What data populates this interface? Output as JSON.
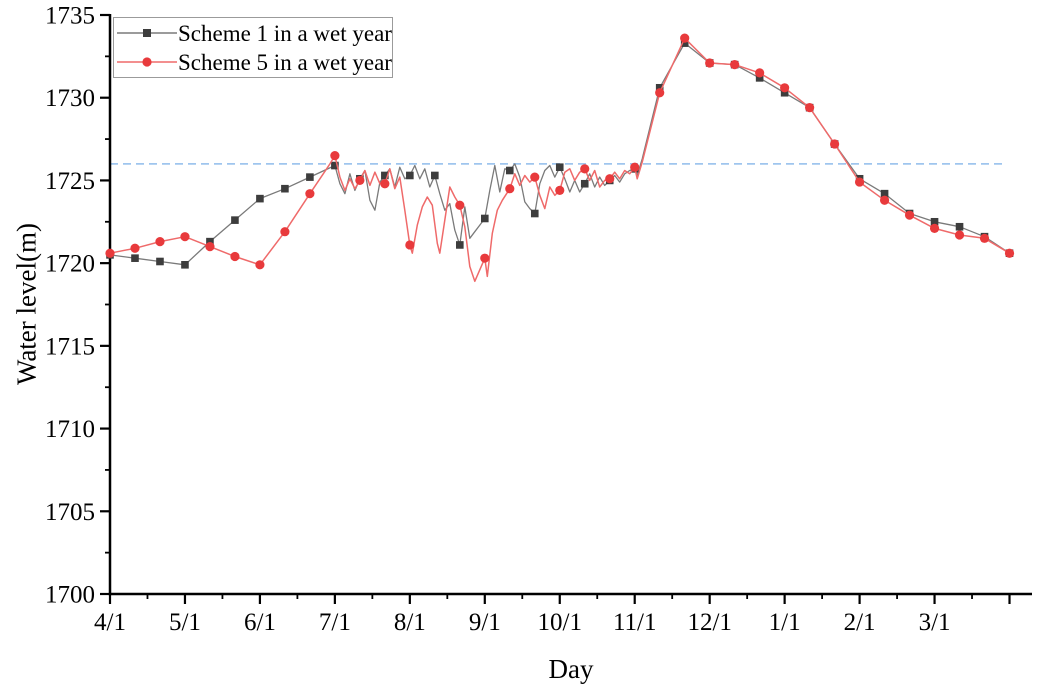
{
  "chart_data": {
    "type": "line",
    "title": "",
    "xlabel": "Day",
    "ylabel": "Water level(m)",
    "x_unit": "days since April 1 (monthly ticks)",
    "xlim": [
      0,
      369
    ],
    "ylim": [
      1700,
      1735
    ],
    "grid": "off",
    "y_major_ticks": [
      1700,
      1705,
      1710,
      1715,
      1720,
      1725,
      1730,
      1735
    ],
    "y_minor_step": 2.5,
    "x_ticks": [
      {
        "day": 0,
        "label": "4/1"
      },
      {
        "day": 30,
        "label": "5/1"
      },
      {
        "day": 60,
        "label": "6/1"
      },
      {
        "day": 90,
        "label": "7/1"
      },
      {
        "day": 120,
        "label": "8/1"
      },
      {
        "day": 150,
        "label": "9/1"
      },
      {
        "day": 180,
        "label": "10/1"
      },
      {
        "day": 210,
        "label": "11/1"
      },
      {
        "day": 240,
        "label": "12/1"
      },
      {
        "day": 270,
        "label": "1/1"
      },
      {
        "day": 300,
        "label": "2/1"
      },
      {
        "day": 330,
        "label": "3/1"
      },
      {
        "day": 360,
        "label": ""
      }
    ],
    "x_minor_tick_days": [
      15,
      45,
      75,
      105,
      135,
      165,
      195,
      225,
      255,
      285,
      315,
      345
    ],
    "reference_line": {
      "value": 1726,
      "style": "dashed",
      "color": "#9fc5ee",
      "extent_days": [
        0,
        358
      ]
    },
    "marker_interval_days": 10,
    "legend": {
      "position": "top-left",
      "border_color": "#9b9b9b"
    },
    "axis_color": "#000000",
    "series": [
      {
        "name": "Scheme 1 in a wet year",
        "line_color": "#7a7a7a",
        "marker": "square",
        "marker_color": "#3d3d3d",
        "points": [
          [
            0,
            1720.5
          ],
          [
            10,
            1720.3
          ],
          [
            20,
            1720.1
          ],
          [
            30,
            1719.9
          ],
          [
            40,
            1721.3
          ],
          [
            50,
            1722.6
          ],
          [
            60,
            1723.9
          ],
          [
            70,
            1724.5
          ],
          [
            80,
            1725.2
          ],
          [
            90,
            1725.9
          ],
          [
            92,
            1724.8
          ],
          [
            94,
            1724.2
          ],
          [
            96,
            1725.4
          ],
          [
            98,
            1724.4
          ],
          [
            100,
            1725.1
          ],
          [
            102,
            1725.6
          ],
          [
            104,
            1723.8
          ],
          [
            106,
            1723.2
          ],
          [
            108,
            1724.9
          ],
          [
            110,
            1725.3
          ],
          [
            112,
            1725.7
          ],
          [
            114,
            1724.6
          ],
          [
            116,
            1725.8
          ],
          [
            118,
            1725.1
          ],
          [
            120,
            1725.3
          ],
          [
            122,
            1725.9
          ],
          [
            124,
            1725.1
          ],
          [
            126,
            1725.7
          ],
          [
            128,
            1724.6
          ],
          [
            130,
            1725.3
          ],
          [
            132,
            1724.2
          ],
          [
            134,
            1723.2
          ],
          [
            136,
            1723.6
          ],
          [
            138,
            1722.0
          ],
          [
            140,
            1721.1
          ],
          [
            142,
            1723.4
          ],
          [
            144,
            1721.5
          ],
          [
            146,
            1721.9
          ],
          [
            148,
            1722.3
          ],
          [
            150,
            1722.7
          ],
          [
            152,
            1724.4
          ],
          [
            154,
            1725.9
          ],
          [
            156,
            1724.3
          ],
          [
            158,
            1725.7
          ],
          [
            160,
            1725.6
          ],
          [
            162,
            1726.0
          ],
          [
            164,
            1725.2
          ],
          [
            166,
            1723.7
          ],
          [
            168,
            1723.3
          ],
          [
            170,
            1723.0
          ],
          [
            172,
            1724.8
          ],
          [
            174,
            1725.6
          ],
          [
            176,
            1725.9
          ],
          [
            178,
            1725.2
          ],
          [
            180,
            1725.8
          ],
          [
            182,
            1725.1
          ],
          [
            184,
            1724.3
          ],
          [
            186,
            1725.0
          ],
          [
            188,
            1724.3
          ],
          [
            190,
            1724.8
          ],
          [
            192,
            1725.4
          ],
          [
            194,
            1724.6
          ],
          [
            196,
            1725.2
          ],
          [
            198,
            1724.7
          ],
          [
            200,
            1725.0
          ],
          [
            202,
            1725.3
          ],
          [
            204,
            1724.9
          ],
          [
            206,
            1725.4
          ],
          [
            208,
            1725.6
          ],
          [
            210,
            1725.7
          ],
          [
            211,
            1725.3
          ],
          [
            213,
            1726.3
          ],
          [
            220,
            1730.6
          ],
          [
            230,
            1733.3
          ],
          [
            240,
            1732.1
          ],
          [
            250,
            1732.0
          ],
          [
            260,
            1731.2
          ],
          [
            270,
            1730.3
          ],
          [
            280,
            1729.4
          ],
          [
            290,
            1727.2
          ],
          [
            300,
            1725.1
          ],
          [
            310,
            1724.2
          ],
          [
            320,
            1723.0
          ],
          [
            330,
            1722.5
          ],
          [
            340,
            1722.2
          ],
          [
            350,
            1721.6
          ],
          [
            360,
            1720.6
          ]
        ]
      },
      {
        "name": "Scheme 5 in a wet year",
        "line_color": "#ef6a6a",
        "marker": "circle",
        "marker_color": "#e83a3c",
        "points": [
          [
            0,
            1720.6
          ],
          [
            10,
            1720.9
          ],
          [
            20,
            1721.3
          ],
          [
            30,
            1721.6
          ],
          [
            40,
            1721.0
          ],
          [
            50,
            1720.4
          ],
          [
            60,
            1719.9
          ],
          [
            70,
            1721.9
          ],
          [
            80,
            1724.2
          ],
          [
            88,
            1726.0
          ],
          [
            90,
            1726.5
          ],
          [
            92,
            1725.2
          ],
          [
            94,
            1724.4
          ],
          [
            96,
            1725.1
          ],
          [
            98,
            1724.5
          ],
          [
            100,
            1725.0
          ],
          [
            102,
            1725.6
          ],
          [
            104,
            1724.7
          ],
          [
            106,
            1725.5
          ],
          [
            108,
            1724.8
          ],
          [
            110,
            1724.8
          ],
          [
            112,
            1725.7
          ],
          [
            114,
            1724.5
          ],
          [
            116,
            1725.2
          ],
          [
            118,
            1723.2
          ],
          [
            120,
            1721.1
          ],
          [
            121,
            1720.6
          ],
          [
            123,
            1722.3
          ],
          [
            125,
            1723.4
          ],
          [
            127,
            1724.0
          ],
          [
            129,
            1723.5
          ],
          [
            131,
            1721.2
          ],
          [
            132,
            1720.6
          ],
          [
            134,
            1722.6
          ],
          [
            136,
            1724.6
          ],
          [
            138,
            1724.0
          ],
          [
            140,
            1723.5
          ],
          [
            142,
            1722.2
          ],
          [
            144,
            1719.8
          ],
          [
            146,
            1718.9
          ],
          [
            148,
            1719.6
          ],
          [
            150,
            1720.3
          ],
          [
            151,
            1719.2
          ],
          [
            153,
            1721.8
          ],
          [
            155,
            1723.2
          ],
          [
            157,
            1723.8
          ],
          [
            160,
            1724.5
          ],
          [
            162,
            1725.4
          ],
          [
            164,
            1724.7
          ],
          [
            166,
            1725.3
          ],
          [
            168,
            1724.9
          ],
          [
            170,
            1725.2
          ],
          [
            172,
            1724.1
          ],
          [
            174,
            1723.3
          ],
          [
            176,
            1724.6
          ],
          [
            178,
            1724.1
          ],
          [
            180,
            1724.4
          ],
          [
            182,
            1725.5
          ],
          [
            184,
            1725.7
          ],
          [
            186,
            1725.0
          ],
          [
            188,
            1725.5
          ],
          [
            190,
            1725.7
          ],
          [
            192,
            1725.0
          ],
          [
            194,
            1725.6
          ],
          [
            196,
            1724.6
          ],
          [
            198,
            1725.0
          ],
          [
            200,
            1725.1
          ],
          [
            202,
            1725.5
          ],
          [
            204,
            1725.1
          ],
          [
            206,
            1725.6
          ],
          [
            208,
            1725.4
          ],
          [
            210,
            1725.8
          ],
          [
            211,
            1725.1
          ],
          [
            213,
            1726.1
          ],
          [
            220,
            1730.3
          ],
          [
            230,
            1733.6
          ],
          [
            240,
            1732.1
          ],
          [
            250,
            1732.0
          ],
          [
            260,
            1731.5
          ],
          [
            270,
            1730.6
          ],
          [
            280,
            1729.4
          ],
          [
            290,
            1727.2
          ],
          [
            300,
            1724.9
          ],
          [
            310,
            1723.8
          ],
          [
            320,
            1722.9
          ],
          [
            330,
            1722.1
          ],
          [
            340,
            1721.7
          ],
          [
            350,
            1721.5
          ],
          [
            360,
            1720.6
          ]
        ]
      }
    ]
  }
}
